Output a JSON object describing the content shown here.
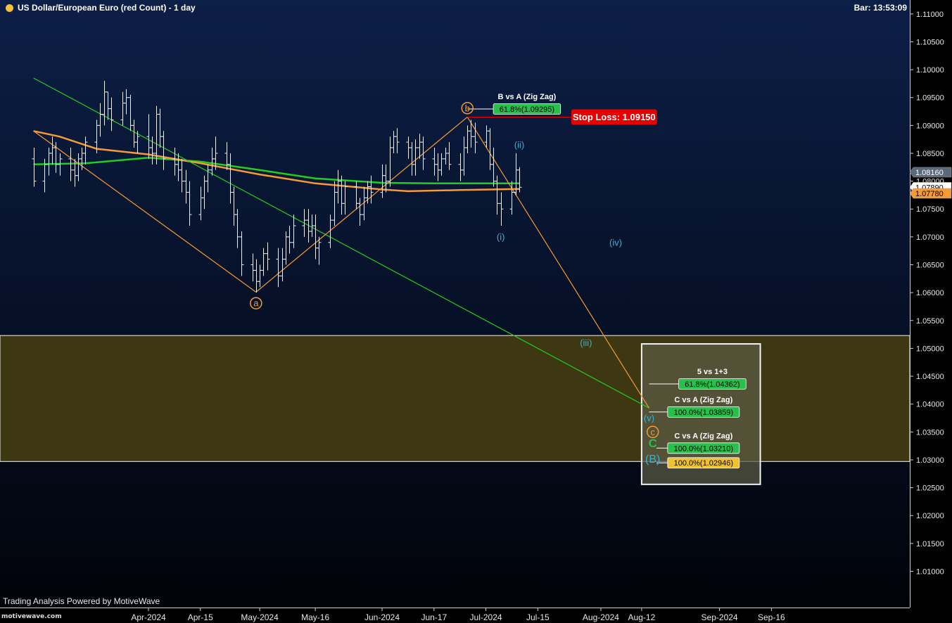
{
  "header": {
    "title": "US Dollar/European Euro (red Count) - 1 day",
    "bar_time": "Bar: 13:53:09"
  },
  "footer": {
    "powered_by": "Trading Analysis Powered by MotiveWave",
    "watermark": "motivewave.com"
  },
  "colors": {
    "background_top": "#0c1f47",
    "background_bottom": "#010309",
    "zone_fill": "#3d3811",
    "box_fill": "#5c5c45",
    "green_line": "#22cc22",
    "orange_line": "#f59a36",
    "stop_loss": "#e60000",
    "label_green": "#27c04a",
    "label_yellow": "#f0c230",
    "wave_cyan": "#38b2d4"
  },
  "chart_data": {
    "type": "ohlc",
    "title": "US Dollar/European Euro (red Count) - 1 day",
    "y_axis": {
      "range": [
        1.0035,
        1.1125
      ],
      "ticks": [
        "1.11000",
        "1.10500",
        "1.10000",
        "1.09500",
        "1.09000",
        "1.08500",
        "1.08000",
        "1.07500",
        "1.07000",
        "1.06500",
        "1.06000",
        "1.05500",
        "1.05000",
        "1.04500",
        "1.04000",
        "1.03500",
        "1.03000",
        "1.02500",
        "1.02000",
        "1.01500",
        "1.01000"
      ]
    },
    "x_axis": {
      "ticks": [
        {
          "label": "Apr-2024",
          "date": "2024-04-01"
        },
        {
          "label": "Apr-15",
          "date": "2024-04-15"
        },
        {
          "label": "May-2024",
          "date": "2024-05-01"
        },
        {
          "label": "May-16",
          "date": "2024-05-16"
        },
        {
          "label": "Jun-2024",
          "date": "2024-06-03"
        },
        {
          "label": "Jun-17",
          "date": "2024-06-17"
        },
        {
          "label": "Jul-2024",
          "date": "2024-07-01"
        },
        {
          "label": "Jul-15",
          "date": "2024-07-15"
        },
        {
          "label": "Aug-2024",
          "date": "2024-08-01"
        },
        {
          "label": "Aug-12",
          "date": "2024-08-12"
        },
        {
          "label": "Sep-2024",
          "date": "2024-09-02"
        },
        {
          "label": "Sep-16",
          "date": "2024-09-16"
        }
      ]
    },
    "price_tags": [
      {
        "label": "1.08160",
        "value": 1.0816,
        "bg": "#5a6a7a",
        "fg": "#ffffff"
      },
      {
        "label": "1.07890",
        "value": 1.0789,
        "bg": "#ffffff",
        "fg": "#000000"
      },
      {
        "label": "1.07780",
        "value": 1.0778,
        "bg": "#f59a36",
        "fg": "#000000"
      }
    ],
    "bars": [
      {
        "date": "2024-03-01",
        "o": 1.084,
        "h": 1.086,
        "l": 1.079,
        "c": 1.08
      },
      {
        "date": "2024-03-04",
        "o": 1.08,
        "h": 1.084,
        "l": 1.078,
        "c": 1.083
      },
      {
        "date": "2024-03-05",
        "o": 1.083,
        "h": 1.086,
        "l": 1.081,
        "c": 1.085
      },
      {
        "date": "2024-03-06",
        "o": 1.085,
        "h": 1.088,
        "l": 1.083,
        "c": 1.086
      },
      {
        "date": "2024-03-07",
        "o": 1.086,
        "h": 1.087,
        "l": 1.0815,
        "c": 1.083
      },
      {
        "date": "2024-03-08",
        "o": 1.083,
        "h": 1.085,
        "l": 1.081,
        "c": 1.084
      },
      {
        "date": "2024-03-11",
        "o": 1.084,
        "h": 1.086,
        "l": 1.08,
        "c": 1.082
      },
      {
        "date": "2024-03-12",
        "o": 1.082,
        "h": 1.084,
        "l": 1.079,
        "c": 1.081
      },
      {
        "date": "2024-03-13",
        "o": 1.081,
        "h": 1.085,
        "l": 1.08,
        "c": 1.084
      },
      {
        "date": "2024-03-14",
        "o": 1.084,
        "h": 1.086,
        "l": 1.082,
        "c": 1.085
      },
      {
        "date": "2024-03-15",
        "o": 1.085,
        "h": 1.088,
        "l": 1.083,
        "c": 1.087
      },
      {
        "date": "2024-03-18",
        "o": 1.087,
        "h": 1.091,
        "l": 1.085,
        "c": 1.09
      },
      {
        "date": "2024-03-19",
        "o": 1.09,
        "h": 1.094,
        "l": 1.088,
        "c": 1.092
      },
      {
        "date": "2024-03-20",
        "o": 1.092,
        "h": 1.098,
        "l": 1.09,
        "c": 1.096
      },
      {
        "date": "2024-03-21",
        "o": 1.096,
        "h": 1.096,
        "l": 1.091,
        "c": 1.093
      },
      {
        "date": "2024-03-22",
        "o": 1.093,
        "h": 1.095,
        "l": 1.089,
        "c": 1.091
      },
      {
        "date": "2024-03-25",
        "o": 1.091,
        "h": 1.096,
        "l": 1.09,
        "c": 1.094
      },
      {
        "date": "2024-03-26",
        "o": 1.094,
        "h": 1.0965,
        "l": 1.092,
        "c": 1.095
      },
      {
        "date": "2024-03-27",
        "o": 1.095,
        "h": 1.0955,
        "l": 1.089,
        "c": 1.09
      },
      {
        "date": "2024-03-28",
        "o": 1.09,
        "h": 1.091,
        "l": 1.086,
        "c": 1.087
      },
      {
        "date": "2024-03-29",
        "o": 1.087,
        "h": 1.089,
        "l": 1.085,
        "c": 1.088
      },
      {
        "date": "2024-04-01",
        "o": 1.088,
        "h": 1.092,
        "l": 1.084,
        "c": 1.086
      },
      {
        "date": "2024-04-02",
        "o": 1.086,
        "h": 1.088,
        "l": 1.083,
        "c": 1.085
      },
      {
        "date": "2024-04-03",
        "o": 1.085,
        "h": 1.0935,
        "l": 1.083,
        "c": 1.092
      },
      {
        "date": "2024-04-04",
        "o": 1.092,
        "h": 1.093,
        "l": 1.086,
        "c": 1.088
      },
      {
        "date": "2024-04-05",
        "o": 1.088,
        "h": 1.089,
        "l": 1.082,
        "c": 1.084
      },
      {
        "date": "2024-04-08",
        "o": 1.084,
        "h": 1.086,
        "l": 1.081,
        "c": 1.083
      },
      {
        "date": "2024-04-09",
        "o": 1.083,
        "h": 1.085,
        "l": 1.08,
        "c": 1.082
      },
      {
        "date": "2024-04-10",
        "o": 1.082,
        "h": 1.084,
        "l": 1.078,
        "c": 1.08
      },
      {
        "date": "2024-04-11",
        "o": 1.08,
        "h": 1.082,
        "l": 1.076,
        "c": 1.078
      },
      {
        "date": "2024-04-12",
        "o": 1.078,
        "h": 1.08,
        "l": 1.072,
        "c": 1.074
      },
      {
        "date": "2024-04-15",
        "o": 1.074,
        "h": 1.079,
        "l": 1.073,
        "c": 1.077
      },
      {
        "date": "2024-04-16",
        "o": 1.077,
        "h": 1.081,
        "l": 1.075,
        "c": 1.08
      },
      {
        "date": "2024-04-17",
        "o": 1.08,
        "h": 1.083,
        "l": 1.078,
        "c": 1.082
      },
      {
        "date": "2024-04-18",
        "o": 1.082,
        "h": 1.086,
        "l": 1.081,
        "c": 1.084
      },
      {
        "date": "2024-04-19",
        "o": 1.084,
        "h": 1.088,
        "l": 1.082,
        "c": 1.085
      },
      {
        "date": "2024-04-22",
        "o": 1.085,
        "h": 1.087,
        "l": 1.082,
        "c": 1.083
      },
      {
        "date": "2024-04-23",
        "o": 1.083,
        "h": 1.085,
        "l": 1.076,
        "c": 1.078
      },
      {
        "date": "2024-04-24",
        "o": 1.078,
        "h": 1.079,
        "l": 1.072,
        "c": 1.074
      },
      {
        "date": "2024-04-25",
        "o": 1.074,
        "h": 1.075,
        "l": 1.068,
        "c": 1.07
      },
      {
        "date": "2024-04-26",
        "o": 1.07,
        "h": 1.071,
        "l": 1.063,
        "c": 1.065
      },
      {
        "date": "2024-04-29",
        "o": 1.065,
        "h": 1.067,
        "l": 1.062,
        "c": 1.064
      },
      {
        "date": "2024-04-30",
        "o": 1.064,
        "h": 1.066,
        "l": 1.06,
        "c": 1.062
      },
      {
        "date": "2024-05-01",
        "o": 1.062,
        "h": 1.065,
        "l": 1.061,
        "c": 1.064
      },
      {
        "date": "2024-05-02",
        "o": 1.064,
        "h": 1.068,
        "l": 1.063,
        "c": 1.067
      },
      {
        "date": "2024-05-03",
        "o": 1.067,
        "h": 1.069,
        "l": 1.064,
        "c": 1.066
      },
      {
        "date": "2024-05-06",
        "o": 1.066,
        "h": 1.068,
        "l": 1.061,
        "c": 1.063
      },
      {
        "date": "2024-05-07",
        "o": 1.063,
        "h": 1.068,
        "l": 1.062,
        "c": 1.066
      },
      {
        "date": "2024-05-08",
        "o": 1.066,
        "h": 1.071,
        "l": 1.065,
        "c": 1.07
      },
      {
        "date": "2024-05-09",
        "o": 1.07,
        "h": 1.072,
        "l": 1.067,
        "c": 1.069
      },
      {
        "date": "2024-05-10",
        "o": 1.069,
        "h": 1.074,
        "l": 1.068,
        "c": 1.072
      },
      {
        "date": "2024-05-13",
        "o": 1.072,
        "h": 1.075,
        "l": 1.07,
        "c": 1.073
      },
      {
        "date": "2024-05-14",
        "o": 1.073,
        "h": 1.075,
        "l": 1.069,
        "c": 1.071
      },
      {
        "date": "2024-05-15",
        "o": 1.071,
        "h": 1.074,
        "l": 1.07,
        "c": 1.072
      },
      {
        "date": "2024-05-16",
        "o": 1.072,
        "h": 1.074,
        "l": 1.066,
        "c": 1.068
      },
      {
        "date": "2024-05-17",
        "o": 1.068,
        "h": 1.07,
        "l": 1.065,
        "c": 1.069
      },
      {
        "date": "2024-05-20",
        "o": 1.069,
        "h": 1.074,
        "l": 1.068,
        "c": 1.073
      },
      {
        "date": "2024-05-21",
        "o": 1.073,
        "h": 1.08,
        "l": 1.072,
        "c": 1.078
      },
      {
        "date": "2024-05-22",
        "o": 1.078,
        "h": 1.082,
        "l": 1.076,
        "c": 1.08
      },
      {
        "date": "2024-05-23",
        "o": 1.08,
        "h": 1.081,
        "l": 1.074,
        "c": 1.076
      },
      {
        "date": "2024-05-24",
        "o": 1.076,
        "h": 1.08,
        "l": 1.074,
        "c": 1.079
      },
      {
        "date": "2024-05-27",
        "o": 1.079,
        "h": 1.08,
        "l": 1.075,
        "c": 1.076
      },
      {
        "date": "2024-05-28",
        "o": 1.076,
        "h": 1.077,
        "l": 1.072,
        "c": 1.074
      },
      {
        "date": "2024-05-29",
        "o": 1.074,
        "h": 1.079,
        "l": 1.073,
        "c": 1.077
      },
      {
        "date": "2024-05-30",
        "o": 1.077,
        "h": 1.08,
        "l": 1.076,
        "c": 1.079
      },
      {
        "date": "2024-05-31",
        "o": 1.079,
        "h": 1.081,
        "l": 1.076,
        "c": 1.078
      },
      {
        "date": "2024-06-03",
        "o": 1.078,
        "h": 1.083,
        "l": 1.077,
        "c": 1.081
      },
      {
        "date": "2024-06-04",
        "o": 1.081,
        "h": 1.083,
        "l": 1.078,
        "c": 1.08
      },
      {
        "date": "2024-06-05",
        "o": 1.08,
        "h": 1.088,
        "l": 1.079,
        "c": 1.086
      },
      {
        "date": "2024-06-06",
        "o": 1.086,
        "h": 1.089,
        "l": 1.085,
        "c": 1.088
      },
      {
        "date": "2024-06-07",
        "o": 1.088,
        "h": 1.0895,
        "l": 1.085,
        "c": 1.087
      },
      {
        "date": "2024-06-10",
        "o": 1.087,
        "h": 1.088,
        "l": 1.084,
        "c": 1.086
      },
      {
        "date": "2024-06-11",
        "o": 1.086,
        "h": 1.087,
        "l": 1.081,
        "c": 1.083
      },
      {
        "date": "2024-06-12",
        "o": 1.083,
        "h": 1.0875,
        "l": 1.081,
        "c": 1.086
      },
      {
        "date": "2024-06-13",
        "o": 1.086,
        "h": 1.0885,
        "l": 1.084,
        "c": 1.087
      },
      {
        "date": "2024-06-14",
        "o": 1.087,
        "h": 1.088,
        "l": 1.082,
        "c": 1.084
      },
      {
        "date": "2024-06-17",
        "o": 1.084,
        "h": 1.086,
        "l": 1.081,
        "c": 1.083
      },
      {
        "date": "2024-06-18",
        "o": 1.083,
        "h": 1.085,
        "l": 1.08,
        "c": 1.082
      },
      {
        "date": "2024-06-19",
        "o": 1.082,
        "h": 1.085,
        "l": 1.081,
        "c": 1.084
      },
      {
        "date": "2024-06-20",
        "o": 1.084,
        "h": 1.086,
        "l": 1.083,
        "c": 1.085
      },
      {
        "date": "2024-06-21",
        "o": 1.085,
        "h": 1.087,
        "l": 1.082,
        "c": 1.083
      },
      {
        "date": "2024-06-24",
        "o": 1.083,
        "h": 1.085,
        "l": 1.08,
        "c": 1.082
      },
      {
        "date": "2024-06-25",
        "o": 1.082,
        "h": 1.088,
        "l": 1.081,
        "c": 1.086
      },
      {
        "date": "2024-06-26",
        "o": 1.086,
        "h": 1.09,
        "l": 1.085,
        "c": 1.089
      },
      {
        "date": "2024-06-27",
        "o": 1.089,
        "h": 1.091,
        "l": 1.086,
        "c": 1.088
      },
      {
        "date": "2024-06-28",
        "o": 1.088,
        "h": 1.0905,
        "l": 1.085,
        "c": 1.087
      },
      {
        "date": "2024-07-01",
        "o": 1.087,
        "h": 1.09,
        "l": 1.086,
        "c": 1.089
      },
      {
        "date": "2024-07-02",
        "o": 1.089,
        "h": 1.0895,
        "l": 1.082,
        "c": 1.083
      },
      {
        "date": "2024-07-03",
        "o": 1.083,
        "h": 1.086,
        "l": 1.079,
        "c": 1.08
      },
      {
        "date": "2024-07-04",
        "o": 1.08,
        "h": 1.081,
        "l": 1.074,
        "c": 1.076
      },
      {
        "date": "2024-07-05",
        "o": 1.076,
        "h": 1.078,
        "l": 1.072,
        "c": 1.075
      },
      {
        "date": "2024-07-08",
        "o": 1.075,
        "h": 1.08,
        "l": 1.074,
        "c": 1.078
      },
      {
        "date": "2024-07-09",
        "o": 1.078,
        "h": 1.085,
        "l": 1.0775,
        "c": 1.082
      },
      {
        "date": "2024-07-10",
        "o": 1.082,
        "h": 1.0825,
        "l": 1.078,
        "c": 1.0789
      }
    ],
    "moving_averages": [
      {
        "color": "#22cc22",
        "points": [
          [
            "2024-03-01",
            1.083
          ],
          [
            "2024-03-15",
            1.0832
          ],
          [
            "2024-04-01",
            1.0842
          ],
          [
            "2024-04-15",
            1.0835
          ],
          [
            "2024-05-01",
            1.082
          ],
          [
            "2024-05-16",
            1.0805
          ],
          [
            "2024-06-03",
            1.0797
          ],
          [
            "2024-06-17",
            1.0796
          ],
          [
            "2024-07-10",
            1.0796
          ]
        ]
      },
      {
        "color": "#f59a36",
        "points": [
          [
            "2024-03-01",
            1.089
          ],
          [
            "2024-03-08",
            1.088
          ],
          [
            "2024-03-18",
            1.0858
          ],
          [
            "2024-04-01",
            1.0848
          ],
          [
            "2024-04-15",
            1.0832
          ],
          [
            "2024-05-01",
            1.0812
          ],
          [
            "2024-05-16",
            1.0796
          ],
          [
            "2024-06-03",
            1.0785
          ],
          [
            "2024-06-10",
            1.0782
          ],
          [
            "2024-06-24",
            1.0784
          ],
          [
            "2024-07-10",
            1.0786
          ]
        ]
      }
    ],
    "trend_lines": [
      {
        "name": "green-trend-line",
        "color": "#22cc22",
        "from": [
          "2024-03-01",
          1.0985
        ],
        "to": [
          "2024-08-14",
          1.0393
        ]
      },
      {
        "name": "orange-wave-a",
        "color": "#f59a36",
        "from": [
          "2024-03-01",
          1.089
        ],
        "to": [
          "2024-04-30",
          1.0601
        ]
      },
      {
        "name": "orange-wave-b",
        "color": "#f59a36",
        "from": [
          "2024-04-30",
          1.0601
        ],
        "to": [
          "2024-06-26",
          1.0915
        ]
      },
      {
        "name": "orange-wave-c",
        "color": "#f59a36",
        "from": [
          "2024-06-26",
          1.0915
        ],
        "to": [
          "2024-08-14",
          1.0393
        ]
      }
    ],
    "stop_loss": {
      "label": "Stop Loss: 1.09150",
      "value": 1.0915,
      "from": "2024-06-26",
      "to": "2024-07-24"
    },
    "zone": {
      "top": 1.0523,
      "bottom": 1.0297
    },
    "target_box": {
      "from": "2024-08-12",
      "to": "2024-09-13",
      "top": 1.0508,
      "bottom": 1.0256
    },
    "fib_levels": [
      {
        "label": "61.8%(1.09295)",
        "caption": "B vs A (Zig Zag)",
        "value": 1.09295,
        "from": "2024-06-26",
        "to": "2024-07-03",
        "bg": "#27c04a"
      },
      {
        "label": "61.8%(1.04362)",
        "caption": "5 vs 1+3",
        "value": 1.04362,
        "from": "2024-08-14",
        "to": "2024-08-22",
        "bg": "#27c04a"
      },
      {
        "label": "100.0%(1.03859)",
        "caption": "C vs A (Zig Zag)",
        "value": 1.03859,
        "from": "2024-08-14",
        "to": "2024-08-19",
        "bg": "#27c04a"
      },
      {
        "label": "100.0%(1.03210)",
        "caption": "C vs A (Zig Zag)",
        "value": 1.0321,
        "from": "2024-08-16",
        "to": "2024-08-19",
        "bg": "#27c04a"
      },
      {
        "label": "100.0%(1.02946)",
        "caption": "",
        "value": 1.02946,
        "from": "2024-08-16",
        "to": "2024-08-19",
        "bg": "#f0c230"
      }
    ],
    "wave_labels": [
      {
        "text": "a",
        "date": "2024-04-30",
        "value": 1.0581,
        "style": "circle",
        "color": "#f59a36"
      },
      {
        "text": "b",
        "date": "2024-06-26",
        "value": 1.0931,
        "style": "circle",
        "color": "#f59a36"
      },
      {
        "text": "(i)",
        "date": "2024-07-05",
        "value": 1.07,
        "style": "plain",
        "color": "#38b2d4"
      },
      {
        "text": "(ii)",
        "date": "2024-07-10",
        "value": 1.0865,
        "style": "plain",
        "color": "#38b2d4"
      },
      {
        "text": "(iii)",
        "date": "2024-07-28",
        "value": 1.051,
        "style": "plain",
        "color": "#38b2d4"
      },
      {
        "text": "(iv)",
        "date": "2024-08-05",
        "value": 1.069,
        "style": "plain",
        "color": "#38b2d4"
      },
      {
        "text": "(v)",
        "date": "2024-08-14",
        "value": 1.0375,
        "style": "plain",
        "color": "#38b2d4"
      },
      {
        "text": "c",
        "date": "2024-08-15",
        "value": 1.035,
        "style": "circle",
        "color": "#f59a36"
      },
      {
        "text": "C",
        "date": "2024-08-15",
        "value": 1.033,
        "style": "bold",
        "color": "#27c04a"
      },
      {
        "text": "(B)",
        "date": "2024-08-15",
        "value": 1.0302,
        "style": "plain-large",
        "color": "#38b2d4"
      }
    ]
  }
}
